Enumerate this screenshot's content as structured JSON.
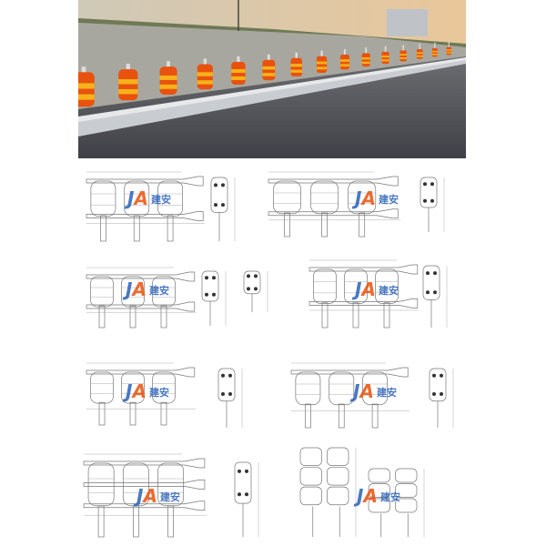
{
  "logo": {
    "mark": "JA",
    "name": "建安"
  }
}
